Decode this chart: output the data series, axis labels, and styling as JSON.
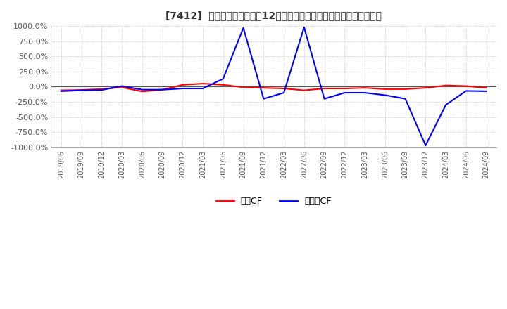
{
  "title": "[7412]  キャッシュフローの12か月移動合計の対前年同期増減率の推移",
  "ylim": [
    -1000,
    1000
  ],
  "yticks": [
    -1000,
    -750,
    -500,
    -250,
    0,
    250,
    500,
    750,
    1000
  ],
  "ytick_labels": [
    "-1000.0%",
    "-750.0%",
    "-500.0%",
    "-250.0%",
    "0.0%",
    "250.0%",
    "500.0%",
    "750.0%",
    "1000.0%"
  ],
  "legend_labels": [
    "営業CF",
    "フリーCF"
  ],
  "line_colors": [
    "#ff0000",
    "#0000ff"
  ],
  "background_color": "#ffffff",
  "grid_color": "#aaaaaa",
  "dates": [
    "2019/06",
    "2019/09",
    "2019/12",
    "2020/03",
    "2020/06",
    "2020/09",
    "2020/12",
    "2021/03",
    "2021/06",
    "2021/09",
    "2021/12",
    "2022/03",
    "2022/06",
    "2022/09",
    "2022/12",
    "2023/03",
    "2023/06",
    "2023/09",
    "2023/12",
    "2024/03",
    "2024/06",
    "2024/09"
  ],
  "operating_cf": [
    -60,
    -55,
    -40,
    -10,
    -80,
    -50,
    30,
    50,
    30,
    -10,
    -20,
    -30,
    -60,
    -30,
    -30,
    -20,
    -40,
    -40,
    -20,
    20,
    10,
    -20
  ],
  "free_cf": [
    -75,
    -60,
    -55,
    10,
    -50,
    -50,
    -30,
    -30,
    130,
    970,
    -200,
    -100,
    980,
    -200,
    -100,
    -100,
    -140,
    -200,
    -970,
    -300,
    -70,
    -75
  ]
}
